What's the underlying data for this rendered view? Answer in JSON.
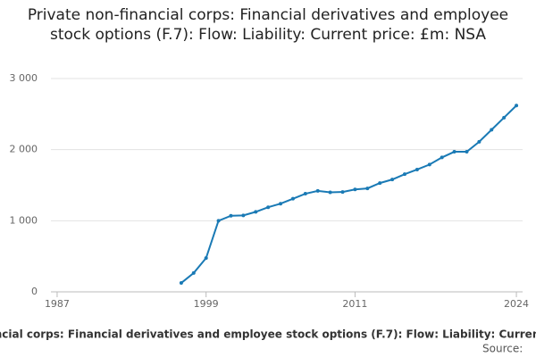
{
  "chart_data": {
    "type": "line",
    "title": "Private non-financial corps: Financial derivatives and employee stock options (F.7): Flow: Liability: Current price: £m: NSA",
    "source": "Source:",
    "x": [
      1997,
      1998,
      1999,
      2000,
      2001,
      2002,
      2003,
      2004,
      2005,
      2006,
      2007,
      2008,
      2009,
      2010,
      2011,
      2012,
      2013,
      2014,
      2015,
      2016,
      2017,
      2018,
      2019,
      2020,
      2021,
      2022,
      2023,
      2024
    ],
    "series": [
      {
        "name": "Private non-financial corps: Financial derivatives and employee stock options (F.7): Flow: Liability: Current price: £m: NSA",
        "color": "#1a7ab5",
        "values": [
          125,
          265,
          475,
          1000,
          1070,
          1075,
          1125,
          1190,
          1240,
          1310,
          1380,
          1420,
          1400,
          1405,
          1440,
          1455,
          1530,
          1580,
          1655,
          1720,
          1790,
          1890,
          1970,
          1970,
          2110,
          2280,
          2450,
          2620
        ]
      }
    ],
    "xlim": [
      1986.5,
      2024.5
    ],
    "xticks": [
      1987,
      1999,
      2011,
      2024
    ],
    "ylim": [
      0,
      3000
    ],
    "yticks": [
      0,
      {
        "value": 1000,
        "label": "1 000"
      },
      {
        "value": 2000,
        "label": "2 000"
      },
      {
        "value": 3000,
        "label": "3 000"
      }
    ],
    "grid": true
  }
}
